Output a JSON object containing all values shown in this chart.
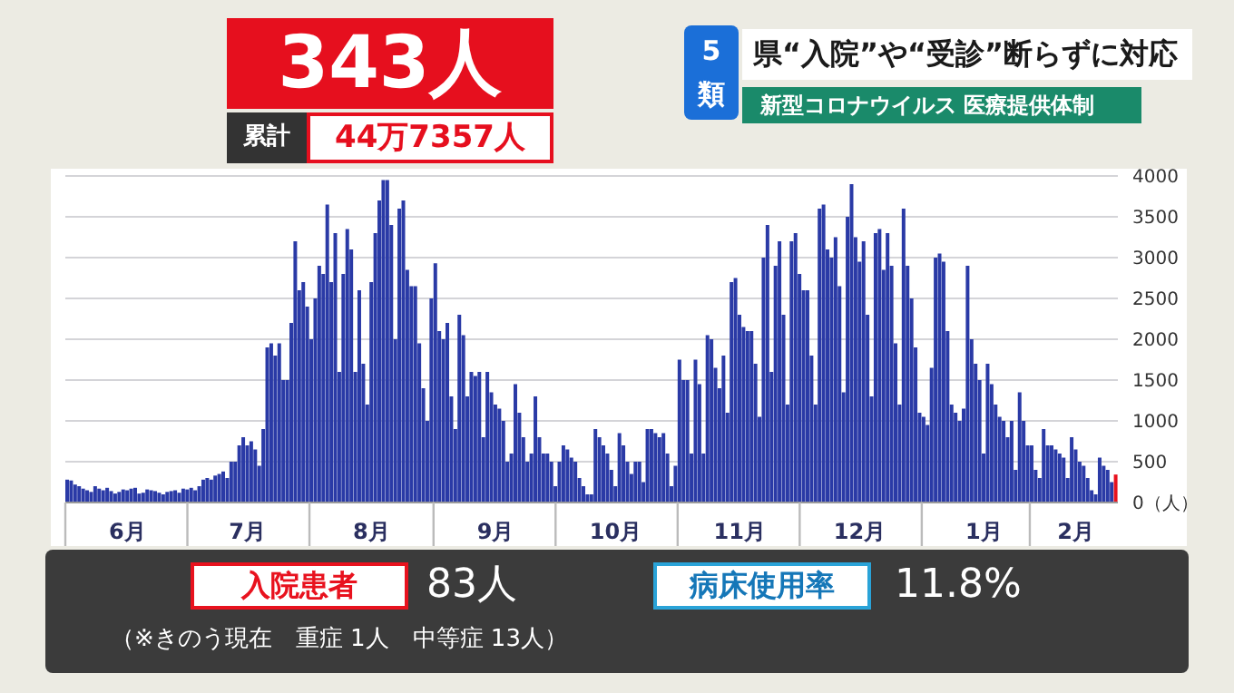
{
  "chart_data": {
    "type": "bar",
    "title": "県“入院”や“受診”断らずに対応",
    "subtitle": "新型コロナウイルス 医療提供体制",
    "annotations": [
      "343人",
      "累計",
      "44万7357人",
      "5類",
      "入院患者",
      "83人",
      "病床使用率",
      "11.8%",
      "（※きのう現在　重症 1人　中等症 13人）"
    ],
    "categories": [
      null,
      null,
      null,
      null,
      null,
      null,
      null,
      null,
      null,
      null,
      null,
      null,
      null,
      null,
      null,
      "6月",
      null,
      null,
      null,
      null,
      null,
      null,
      null,
      null,
      null,
      null,
      null,
      null,
      null,
      null,
      null,
      null,
      null,
      null,
      null,
      null,
      null,
      null,
      null,
      null,
      null,
      null,
      null,
      null,
      null,
      "7月",
      null,
      null,
      null,
      null,
      null,
      null,
      null,
      null,
      null,
      null,
      null,
      null,
      null,
      null,
      null,
      null,
      null,
      null,
      null,
      null,
      null,
      null,
      null,
      null,
      null,
      null,
      null,
      null,
      null,
      null,
      "8月",
      null,
      null,
      null,
      null,
      null,
      null,
      null,
      null,
      null,
      null,
      null,
      null,
      null,
      null,
      null,
      null,
      null,
      null,
      null,
      null,
      null,
      null,
      null,
      null,
      null,
      null,
      null,
      null,
      null,
      null,
      "9月",
      null,
      null,
      null,
      null,
      null,
      null,
      null,
      null,
      null,
      null,
      null,
      null,
      null,
      null,
      null,
      null,
      null,
      null,
      null,
      null,
      null,
      null,
      null,
      null,
      null,
      null,
      null,
      null,
      null,
      "10月",
      null,
      null,
      null,
      null,
      null,
      null,
      null,
      null,
      null,
      null,
      null,
      null,
      null,
      null,
      null,
      null,
      null,
      null,
      null,
      null,
      null,
      null,
      null,
      null,
      null,
      null,
      null,
      null,
      null,
      null,
      "11月",
      null,
      null,
      null,
      null,
      null,
      null,
      null,
      null,
      null,
      null,
      null,
      null,
      null,
      null,
      null,
      null,
      null,
      null,
      null,
      null,
      null,
      null,
      null,
      null,
      null,
      null,
      null,
      null,
      null,
      "12月",
      null,
      null,
      null,
      null,
      null,
      null,
      null,
      null,
      null,
      null,
      null,
      null,
      null,
      null,
      null,
      null,
      null,
      null,
      null,
      null,
      null,
      null,
      null,
      null,
      null,
      null,
      null,
      null,
      null,
      null,
      "1月",
      null,
      null,
      null,
      null,
      null,
      null,
      null,
      null,
      null,
      null,
      null,
      null,
      null,
      null,
      null,
      null,
      null,
      null,
      null,
      null,
      null,
      null,
      "2月",
      null,
      null,
      null,
      null,
      null,
      null,
      null,
      null,
      null,
      null
    ],
    "ylim": [
      0,
      4000
    ],
    "yticks": [
      {
        "value": 0,
        "label": "0（人）"
      },
      500,
      1000,
      1500,
      2000,
      2500,
      3000,
      3500,
      4000
    ],
    "grid": "y",
    "values": [
      280,
      270,
      220,
      200,
      170,
      150,
      130,
      200,
      170,
      150,
      180,
      140,
      110,
      130,
      160,
      150,
      170,
      180,
      110,
      120,
      160,
      150,
      140,
      120,
      100,
      130,
      140,
      150,
      120,
      170,
      160,
      180,
      150,
      200,
      280,
      300,
      280,
      330,
      350,
      380,
      300,
      500,
      500,
      700,
      800,
      700,
      750,
      650,
      450,
      900,
      1900,
      1950,
      1800,
      1950,
      1500,
      1500,
      2200,
      3200,
      2600,
      2700,
      2400,
      2000,
      2500,
      2900,
      2800,
      3650,
      2700,
      3300,
      1600,
      2800,
      3350,
      3100,
      1600,
      2600,
      1700,
      1200,
      2700,
      3300,
      3700,
      3950,
      3950,
      3400,
      2000,
      3600,
      3700,
      2850,
      2650,
      2650,
      1950,
      1400,
      1000,
      2500,
      2930,
      2100,
      2000,
      2200,
      1300,
      900,
      2300,
      2050,
      1300,
      1600,
      1550,
      1600,
      800,
      1600,
      1350,
      1200,
      1150,
      1000,
      500,
      600,
      1450,
      1100,
      800,
      500,
      600,
      1300,
      800,
      600,
      600,
      500,
      200,
      500,
      700,
      650,
      550,
      500,
      300,
      200,
      100,
      100,
      900,
      800,
      700,
      600,
      400,
      200,
      850,
      700,
      500,
      350,
      500,
      500,
      250,
      900,
      900,
      850,
      800,
      850,
      600,
      200,
      450,
      1750,
      1500,
      1500,
      600,
      1750,
      1450,
      600,
      2050,
      2000,
      1650,
      1400,
      1800,
      1100,
      2700,
      2750,
      2300,
      2150,
      2100,
      2100,
      1700,
      1050,
      3000,
      3400,
      1600,
      2900,
      3200,
      2300,
      1200,
      3200,
      3300,
      2800,
      2600,
      2600,
      1800,
      1200,
      3600,
      3650,
      3100,
      3000,
      3250,
      2650,
      1350,
      3500,
      3900,
      3250,
      2950,
      3200,
      2300,
      1300,
      3300,
      3350,
      2850,
      3300,
      2900,
      1950,
      1200,
      3600,
      2900,
      2500,
      1900,
      1100,
      1050,
      950,
      1650,
      3000,
      3050,
      2950,
      2100,
      1200,
      1100,
      1000,
      1150,
      2900,
      2000,
      1700,
      1500,
      600,
      1700,
      1450,
      1200,
      1050,
      1000,
      800,
      1000,
      400,
      1350,
      1000,
      700,
      700,
      400,
      300,
      900,
      700,
      700,
      650,
      600,
      550,
      300,
      800,
      650,
      500,
      450,
      300,
      150,
      100,
      550,
      450,
      400,
      250,
      343
    ],
    "colors": [
      "#2a3aa6",
      "#2a3aa6",
      "#2a3aa6",
      "#2a3aa6",
      "#2a3aa6",
      "#2a3aa6",
      "#2a3aa6",
      "#2a3aa6",
      "#2a3aa6",
      "#2a3aa6",
      "#2a3aa6",
      "#2a3aa6",
      "#2a3aa6",
      "#2a3aa6",
      "#2a3aa6",
      "#2a3aa6",
      "#2a3aa6",
      "#2a3aa6",
      "#2a3aa6",
      "#2a3aa6",
      "#2a3aa6",
      "#2a3aa6",
      "#2a3aa6",
      "#2a3aa6",
      "#2a3aa6",
      "#2a3aa6",
      "#2a3aa6",
      "#2a3aa6",
      "#2a3aa6",
      "#2a3aa6",
      "#2a3aa6",
      "#2a3aa6",
      "#2a3aa6",
      "#2a3aa6",
      "#2a3aa6",
      "#2a3aa6",
      "#2a3aa6",
      "#2a3aa6",
      "#2a3aa6",
      "#2a3aa6",
      "#2a3aa6",
      "#2a3aa6",
      "#2a3aa6",
      "#2a3aa6",
      "#2a3aa6",
      "#2a3aa6",
      "#2a3aa6",
      "#2a3aa6",
      "#2a3aa6",
      "#2a3aa6",
      "#2a3aa6",
      "#2a3aa6",
      "#2a3aa6",
      "#2a3aa6",
      "#2a3aa6",
      "#2a3aa6",
      "#2a3aa6",
      "#2a3aa6",
      "#2a3aa6",
      "#2a3aa6",
      "#2a3aa6",
      "#2a3aa6",
      "#2a3aa6",
      "#2a3aa6",
      "#2a3aa6",
      "#2a3aa6",
      "#2a3aa6",
      "#2a3aa6",
      "#2a3aa6",
      "#2a3aa6",
      "#2a3aa6",
      "#2a3aa6",
      "#2a3aa6",
      "#2a3aa6",
      "#2a3aa6",
      "#2a3aa6",
      "#2a3aa6",
      "#2a3aa6",
      "#2a3aa6",
      "#2a3aa6",
      "#2a3aa6",
      "#2a3aa6",
      "#2a3aa6",
      "#2a3aa6",
      "#2a3aa6",
      "#2a3aa6",
      "#2a3aa6",
      "#2a3aa6",
      "#2a3aa6",
      "#2a3aa6",
      "#2a3aa6",
      "#2a3aa6",
      "#2a3aa6",
      "#2a3aa6",
      "#2a3aa6",
      "#2a3aa6",
      "#2a3aa6",
      "#2a3aa6",
      "#2a3aa6",
      "#2a3aa6",
      "#2a3aa6",
      "#2a3aa6",
      "#2a3aa6",
      "#2a3aa6",
      "#2a3aa6",
      "#2a3aa6",
      "#2a3aa6",
      "#2a3aa6",
      "#2a3aa6",
      "#2a3aa6",
      "#2a3aa6",
      "#2a3aa6",
      "#2a3aa6",
      "#2a3aa6",
      "#2a3aa6",
      "#2a3aa6",
      "#2a3aa6",
      "#2a3aa6",
      "#2a3aa6",
      "#2a3aa6",
      "#2a3aa6",
      "#2a3aa6",
      "#2a3aa6",
      "#2a3aa6",
      "#2a3aa6",
      "#2a3aa6",
      "#2a3aa6",
      "#2a3aa6",
      "#2a3aa6",
      "#2a3aa6",
      "#2a3aa6",
      "#2a3aa6",
      "#2a3aa6",
      "#2a3aa6",
      "#2a3aa6",
      "#2a3aa6",
      "#2a3aa6",
      "#2a3aa6",
      "#2a3aa6",
      "#2a3aa6",
      "#2a3aa6",
      "#2a3aa6",
      "#2a3aa6",
      "#2a3aa6",
      "#2a3aa6",
      "#2a3aa6",
      "#2a3aa6",
      "#2a3aa6",
      "#2a3aa6",
      "#2a3aa6",
      "#2a3aa6",
      "#2a3aa6",
      "#2a3aa6",
      "#2a3aa6",
      "#2a3aa6",
      "#2a3aa6",
      "#2a3aa6",
      "#2a3aa6",
      "#2a3aa6",
      "#2a3aa6",
      "#2a3aa6",
      "#2a3aa6",
      "#2a3aa6",
      "#2a3aa6",
      "#2a3aa6",
      "#2a3aa6",
      "#2a3aa6",
      "#2a3aa6",
      "#2a3aa6",
      "#2a3aa6",
      "#2a3aa6",
      "#2a3aa6",
      "#2a3aa6",
      "#2a3aa6",
      "#2a3aa6",
      "#2a3aa6",
      "#2a3aa6",
      "#2a3aa6",
      "#2a3aa6",
      "#2a3aa6",
      "#2a3aa6",
      "#2a3aa6",
      "#2a3aa6",
      "#2a3aa6",
      "#2a3aa6",
      "#2a3aa6",
      "#2a3aa6",
      "#2a3aa6",
      "#2a3aa6",
      "#2a3aa6",
      "#2a3aa6",
      "#2a3aa6",
      "#2a3aa6",
      "#2a3aa6",
      "#2a3aa6",
      "#2a3aa6",
      "#2a3aa6",
      "#2a3aa6",
      "#2a3aa6",
      "#2a3aa6",
      "#2a3aa6",
      "#2a3aa6",
      "#2a3aa6",
      "#2a3aa6",
      "#2a3aa6",
      "#2a3aa6",
      "#2a3aa6",
      "#2a3aa6",
      "#2a3aa6",
      "#2a3aa6",
      "#2a3aa6",
      "#2a3aa6",
      "#2a3aa6",
      "#2a3aa6",
      "#2a3aa6",
      "#2a3aa6",
      "#2a3aa6",
      "#2a3aa6",
      "#2a3aa6",
      "#2a3aa6",
      "#2a3aa6",
      "#2a3aa6",
      "#2a3aa6",
      "#2a3aa6",
      "#2a3aa6",
      "#2a3aa6",
      "#2a3aa6",
      "#2a3aa6",
      "#2a3aa6",
      "#2a3aa6",
      "#2a3aa6",
      "#2a3aa6",
      "#2a3aa6",
      "#2a3aa6",
      "#2a3aa6",
      "#2a3aa6",
      "#2a3aa6",
      "#2a3aa6",
      "#2a3aa6",
      "#2a3aa6",
      "#2a3aa6",
      "#2a3aa6",
      "#2a3aa6",
      "#2a3aa6",
      "#2a3aa6",
      "#2a3aa6",
      "#2a3aa6",
      "#2a3aa6",
      "#2a3aa6",
      "#2a3aa6",
      "#2a3aa6",
      "#2a3aa6",
      "#2a3aa6",
      "#2a3aa6",
      "#2a3aa6",
      "#2a3aa6",
      "#2a3aa6",
      "#2a3aa6",
      "#2a3aa6",
      "#2a3aa6",
      "#2a3aa6",
      "#2a3aa6",
      "#e8121e"
    ]
  }
}
